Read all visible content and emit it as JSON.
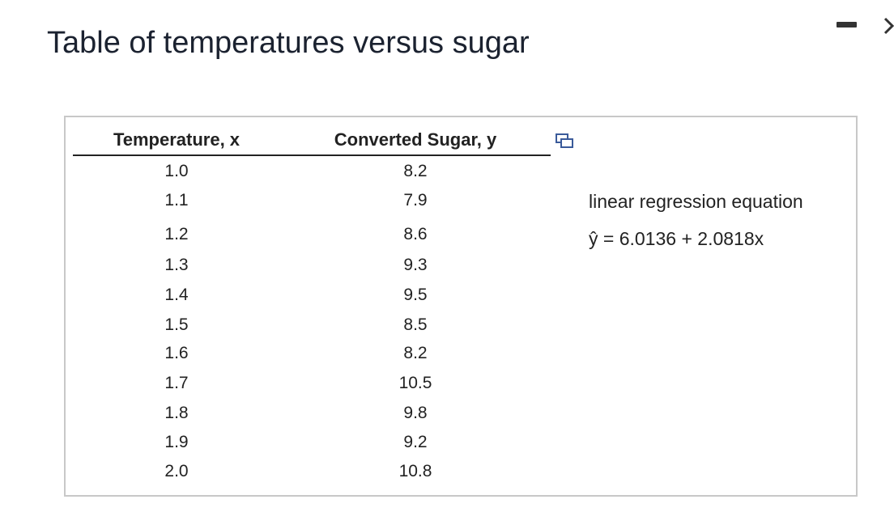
{
  "header": {
    "title": "Table of temperatures versus sugar"
  },
  "table": {
    "columns": [
      "Temperature, x",
      "Converted Sugar, y"
    ],
    "rows": [
      [
        "1.0",
        "8.2"
      ],
      [
        "1.1",
        "7.9"
      ],
      [
        "1.2",
        "8.6"
      ],
      [
        "1.3",
        "9.3"
      ],
      [
        "1.4",
        "9.5"
      ],
      [
        "1.5",
        "8.5"
      ],
      [
        "1.6",
        "8.2"
      ],
      [
        "1.7",
        "10.5"
      ],
      [
        "1.8",
        "9.8"
      ],
      [
        "1.9",
        "9.2"
      ],
      [
        "2.0",
        "10.8"
      ]
    ]
  },
  "regression": {
    "label": "linear regression equation",
    "equation": "ŷ = 6.0136 + 2.0818x"
  }
}
